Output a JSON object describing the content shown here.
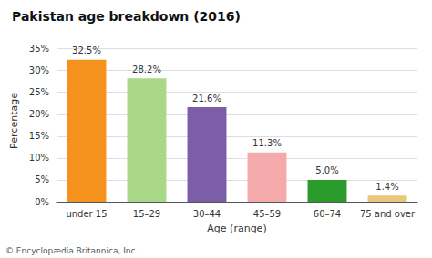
{
  "chart_data": {
    "type": "bar",
    "title": "Pakistan age breakdown (2016)",
    "categories": [
      "under 15",
      "15–29",
      "30–44",
      "45–59",
      "60–74",
      "75 and over"
    ],
    "values": [
      32.5,
      28.2,
      21.6,
      11.3,
      5.0,
      1.4
    ],
    "value_labels": [
      "32.5%",
      "28.2%",
      "21.6%",
      "11.3%",
      "5.0%",
      "1.4%"
    ],
    "colors": [
      "#F5921E",
      "#A8D888",
      "#7B5EA7",
      "#F4AAAA",
      "#2A9A2A",
      "#E8C87A"
    ],
    "xlabel": "Age (range)",
    "ylabel": "Percentage",
    "ylim": [
      0,
      37
    ],
    "yticks": [
      {
        "value": 0,
        "label": "0%"
      },
      {
        "value": 5,
        "label": "5%"
      },
      {
        "value": 10,
        "label": "10%"
      },
      {
        "value": 15,
        "label": "15%"
      },
      {
        "value": 20,
        "label": "20%"
      },
      {
        "value": 25,
        "label": "25%"
      },
      {
        "value": 30,
        "label": "30%"
      },
      {
        "value": 35,
        "label": "35%"
      }
    ],
    "grid": true,
    "data_labels": true,
    "annotations": [
      "© Encyclopædia Britannica, Inc."
    ]
  }
}
